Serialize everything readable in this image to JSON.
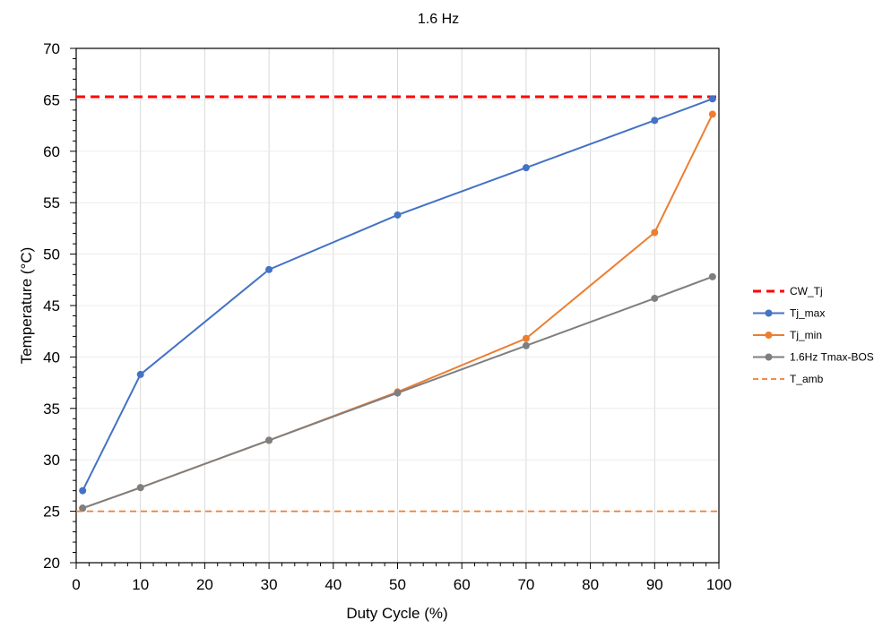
{
  "chart_data": {
    "type": "line",
    "title": "1.6 Hz",
    "xlabel": "Duty Cycle (%)",
    "ylabel": "Temperature (°C)",
    "xlim": [
      0,
      100
    ],
    "ylim": [
      20,
      70
    ],
    "xticks": [
      0,
      10,
      20,
      30,
      40,
      50,
      60,
      70,
      80,
      90,
      100
    ],
    "yticks": [
      20,
      25,
      30,
      35,
      40,
      45,
      50,
      55,
      60,
      65,
      70
    ],
    "grid": true,
    "legend_position": "right",
    "x": [
      1,
      10,
      30,
      50,
      70,
      90,
      99
    ],
    "series": [
      {
        "name": "CW_Tj",
        "style": "dashed",
        "color": "#ff0000",
        "constant": 65.3
      },
      {
        "name": "Tj_max",
        "style": "solid-marker",
        "color": "#4472c4",
        "values": [
          27.0,
          38.3,
          48.5,
          53.8,
          58.4,
          63.0,
          65.1
        ]
      },
      {
        "name": "Tj_min",
        "style": "solid-marker",
        "color": "#ed7d31",
        "values": [
          25.3,
          27.3,
          31.9,
          36.6,
          41.8,
          52.1,
          63.6
        ]
      },
      {
        "name": "1.6Hz Tmax-BOS",
        "style": "solid-marker",
        "color": "#7f7f7f",
        "values": [
          25.3,
          27.3,
          31.9,
          36.5,
          41.1,
          45.7,
          47.8
        ]
      },
      {
        "name": "T_amb",
        "style": "dashed-thin",
        "color": "#ed7d31",
        "constant": 25
      }
    ]
  }
}
